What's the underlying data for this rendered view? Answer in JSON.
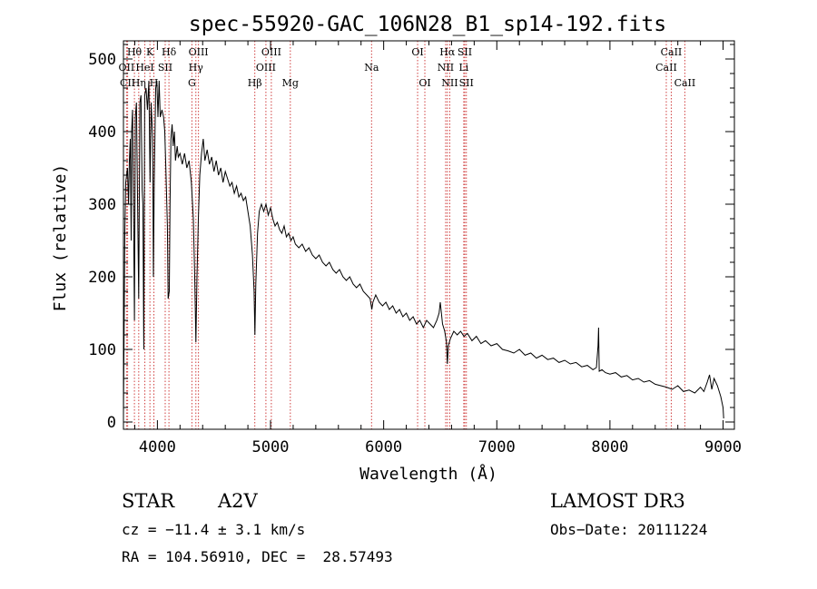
{
  "chart_data": {
    "type": "line",
    "title": "spec-55920-GAC_106N28_B1_sp14-192.fits",
    "xlabel": "Wavelength (Å)",
    "ylabel": "Flux (relative)",
    "xlim": [
      3700,
      9100
    ],
    "ylim": [
      -10,
      525
    ],
    "xticks": [
      4000,
      5000,
      6000,
      7000,
      8000,
      9000
    ],
    "yticks": [
      0,
      100,
      200,
      300,
      400,
      500
    ],
    "grid": false,
    "series": [
      {
        "name": "spectrum",
        "points": [
          [
            3700,
            10
          ],
          [
            3705,
            110
          ],
          [
            3712,
            260
          ],
          [
            3720,
            330
          ],
          [
            3735,
            350
          ],
          [
            3745,
            300
          ],
          [
            3752,
            360
          ],
          [
            3760,
            390
          ],
          [
            3768,
            250
          ],
          [
            3772,
            400
          ],
          [
            3780,
            430
          ],
          [
            3790,
            280
          ],
          [
            3797,
            140
          ],
          [
            3805,
            420
          ],
          [
            3815,
            440
          ],
          [
            3825,
            300
          ],
          [
            3835,
            170
          ],
          [
            3845,
            440
          ],
          [
            3855,
            450
          ],
          [
            3865,
            320
          ],
          [
            3872,
            300
          ],
          [
            3880,
            100
          ],
          [
            3888,
            450
          ],
          [
            3900,
            460
          ],
          [
            3912,
            430
          ],
          [
            3925,
            470
          ],
          [
            3935,
            330
          ],
          [
            3945,
            440
          ],
          [
            3958,
            390
          ],
          [
            3965,
            200
          ],
          [
            3972,
            330
          ],
          [
            3985,
            460
          ],
          [
            3995,
            470
          ],
          [
            4005,
            420
          ],
          [
            4015,
            470
          ],
          [
            4025,
            420
          ],
          [
            4040,
            430
          ],
          [
            4055,
            420
          ],
          [
            4065,
            400
          ],
          [
            4075,
            350
          ],
          [
            4088,
            270
          ],
          [
            4095,
            170
          ],
          [
            4105,
            180
          ],
          [
            4112,
            300
          ],
          [
            4120,
            390
          ],
          [
            4130,
            410
          ],
          [
            4140,
            380
          ],
          [
            4150,
            400
          ],
          [
            4160,
            360
          ],
          [
            4175,
            380
          ],
          [
            4185,
            365
          ],
          [
            4200,
            370
          ],
          [
            4220,
            355
          ],
          [
            4240,
            370
          ],
          [
            4260,
            350
          ],
          [
            4280,
            360
          ],
          [
            4300,
            330
          ],
          [
            4318,
            280
          ],
          [
            4330,
            200
          ],
          [
            4340,
            110
          ],
          [
            4350,
            200
          ],
          [
            4362,
            280
          ],
          [
            4375,
            340
          ],
          [
            4390,
            370
          ],
          [
            4405,
            390
          ],
          [
            4420,
            360
          ],
          [
            4440,
            375
          ],
          [
            4460,
            355
          ],
          [
            4480,
            365
          ],
          [
            4500,
            345
          ],
          [
            4520,
            360
          ],
          [
            4540,
            340
          ],
          [
            4560,
            350
          ],
          [
            4580,
            330
          ],
          [
            4600,
            345
          ],
          [
            4620,
            335
          ],
          [
            4640,
            325
          ],
          [
            4660,
            330
          ],
          [
            4680,
            315
          ],
          [
            4700,
            325
          ],
          [
            4720,
            310
          ],
          [
            4740,
            315
          ],
          [
            4760,
            305
          ],
          [
            4780,
            310
          ],
          [
            4800,
            290
          ],
          [
            4820,
            270
          ],
          [
            4840,
            230
          ],
          [
            4855,
            180
          ],
          [
            4862,
            120
          ],
          [
            4870,
            190
          ],
          [
            4885,
            260
          ],
          [
            4900,
            290
          ],
          [
            4920,
            300
          ],
          [
            4940,
            290
          ],
          [
            4960,
            300
          ],
          [
            4980,
            285
          ],
          [
            5000,
            295
          ],
          [
            5020,
            280
          ],
          [
            5040,
            270
          ],
          [
            5060,
            275
          ],
          [
            5080,
            265
          ],
          [
            5100,
            260
          ],
          [
            5120,
            270
          ],
          [
            5140,
            255
          ],
          [
            5160,
            260
          ],
          [
            5180,
            250
          ],
          [
            5200,
            255
          ],
          [
            5220,
            245
          ],
          [
            5250,
            240
          ],
          [
            5280,
            245
          ],
          [
            5310,
            235
          ],
          [
            5340,
            240
          ],
          [
            5370,
            230
          ],
          [
            5400,
            225
          ],
          [
            5430,
            230
          ],
          [
            5460,
            220
          ],
          [
            5490,
            215
          ],
          [
            5520,
            220
          ],
          [
            5550,
            210
          ],
          [
            5580,
            205
          ],
          [
            5610,
            210
          ],
          [
            5640,
            200
          ],
          [
            5670,
            195
          ],
          [
            5700,
            200
          ],
          [
            5730,
            190
          ],
          [
            5760,
            185
          ],
          [
            5790,
            190
          ],
          [
            5820,
            180
          ],
          [
            5850,
            175
          ],
          [
            5880,
            170
          ],
          [
            5895,
            155
          ],
          [
            5905,
            165
          ],
          [
            5930,
            175
          ],
          [
            5960,
            165
          ],
          [
            5990,
            160
          ],
          [
            6020,
            165
          ],
          [
            6050,
            155
          ],
          [
            6080,
            160
          ],
          [
            6110,
            150
          ],
          [
            6140,
            155
          ],
          [
            6170,
            145
          ],
          [
            6200,
            150
          ],
          [
            6230,
            140
          ],
          [
            6260,
            145
          ],
          [
            6290,
            135
          ],
          [
            6320,
            140
          ],
          [
            6350,
            130
          ],
          [
            6380,
            140
          ],
          [
            6410,
            135
          ],
          [
            6440,
            130
          ],
          [
            6470,
            140
          ],
          [
            6490,
            150
          ],
          [
            6500,
            165
          ],
          [
            6520,
            135
          ],
          [
            6540,
            125
          ],
          [
            6555,
            110
          ],
          [
            6563,
            80
          ],
          [
            6572,
            105
          ],
          [
            6590,
            115
          ],
          [
            6620,
            125
          ],
          [
            6650,
            120
          ],
          [
            6680,
            125
          ],
          [
            6710,
            118
          ],
          [
            6740,
            122
          ],
          [
            6780,
            112
          ],
          [
            6820,
            118
          ],
          [
            6860,
            108
          ],
          [
            6900,
            112
          ],
          [
            6950,
            105
          ],
          [
            7000,
            108
          ],
          [
            7050,
            100
          ],
          [
            7100,
            98
          ],
          [
            7150,
            95
          ],
          [
            7200,
            100
          ],
          [
            7250,
            92
          ],
          [
            7300,
            95
          ],
          [
            7350,
            88
          ],
          [
            7400,
            92
          ],
          [
            7450,
            86
          ],
          [
            7500,
            88
          ],
          [
            7550,
            82
          ],
          [
            7600,
            85
          ],
          [
            7650,
            80
          ],
          [
            7700,
            82
          ],
          [
            7750,
            76
          ],
          [
            7800,
            78
          ],
          [
            7850,
            72
          ],
          [
            7880,
            75
          ],
          [
            7895,
            105
          ],
          [
            7900,
            130
          ],
          [
            7905,
            70
          ],
          [
            7930,
            72
          ],
          [
            7960,
            68
          ],
          [
            8000,
            66
          ],
          [
            8050,
            68
          ],
          [
            8100,
            62
          ],
          [
            8150,
            64
          ],
          [
            8200,
            58
          ],
          [
            8250,
            60
          ],
          [
            8300,
            55
          ],
          [
            8350,
            57
          ],
          [
            8400,
            52
          ],
          [
            8450,
            50
          ],
          [
            8500,
            48
          ],
          [
            8550,
            45
          ],
          [
            8600,
            50
          ],
          [
            8650,
            42
          ],
          [
            8700,
            44
          ],
          [
            8750,
            40
          ],
          [
            8800,
            48
          ],
          [
            8830,
            42
          ],
          [
            8860,
            55
          ],
          [
            8880,
            65
          ],
          [
            8900,
            45
          ],
          [
            8920,
            60
          ],
          [
            8950,
            50
          ],
          [
            8980,
            35
          ],
          [
            9000,
            20
          ],
          [
            9005,
            5
          ]
        ]
      }
    ],
    "line_markers": [
      {
        "label": "Hθ",
        "wavelength": 3797,
        "row": 1
      },
      {
        "label": "OII",
        "wavelength": 3727,
        "row": 2
      },
      {
        "label": "CII",
        "wavelength": 3737,
        "row": 3
      },
      {
        "label": "Hη",
        "wavelength": 3835,
        "row": 3
      },
      {
        "label": "HeI",
        "wavelength": 3889,
        "row": 2
      },
      {
        "label": "K",
        "wavelength": 3934,
        "row": 1
      },
      {
        "label": "H",
        "wavelength": 3969,
        "row": 3
      },
      {
        "label": "SII",
        "wavelength": 4069,
        "row": 2
      },
      {
        "label": "Hδ",
        "wavelength": 4102,
        "row": 1
      },
      {
        "label": "OIII",
        "wavelength": 4363,
        "row": 1
      },
      {
        "label": "Hγ",
        "wavelength": 4340,
        "row": 2
      },
      {
        "label": "G",
        "wavelength": 4305,
        "row": 3
      },
      {
        "label": "Hβ",
        "wavelength": 4861,
        "row": 3
      },
      {
        "label": "OIII",
        "wavelength": 5007,
        "row": 1
      },
      {
        "label": "OIII",
        "wavelength": 4959,
        "row": 2
      },
      {
        "label": "Mg",
        "wavelength": 5175,
        "row": 3
      },
      {
        "label": "Na",
        "wavelength": 5893,
        "row": 2
      },
      {
        "label": "OI",
        "wavelength": 6300,
        "row": 1
      },
      {
        "label": "OI",
        "wavelength": 6364,
        "row": 3
      },
      {
        "label": "Hα",
        "wavelength": 6563,
        "row": 1
      },
      {
        "label": "NII",
        "wavelength": 6548,
        "row": 2
      },
      {
        "label": "NII",
        "wavelength": 6584,
        "row": 3
      },
      {
        "label": "SII",
        "wavelength": 6717,
        "row": 1
      },
      {
        "label": "Li",
        "wavelength": 6708,
        "row": 2
      },
      {
        "label": "SII",
        "wavelength": 6731,
        "row": 3
      },
      {
        "label": "CaII",
        "wavelength": 8542,
        "row": 1
      },
      {
        "label": "CaII",
        "wavelength": 8498,
        "row": 2
      },
      {
        "label": "CaII",
        "wavelength": 8662,
        "row": 3
      }
    ]
  },
  "info": {
    "class_label": "STAR",
    "subclass": "A2V",
    "survey": "LAMOST DR3",
    "cz": "cz = −11.4 ± 3.1 km/s",
    "obs_date": "Obs−Date: 20111224",
    "coords": "RA = 104.56910, DEC =  28.57493"
  },
  "colors": {
    "spectrum": "#000000",
    "marker_line": "#d04040",
    "text": "#000000"
  }
}
